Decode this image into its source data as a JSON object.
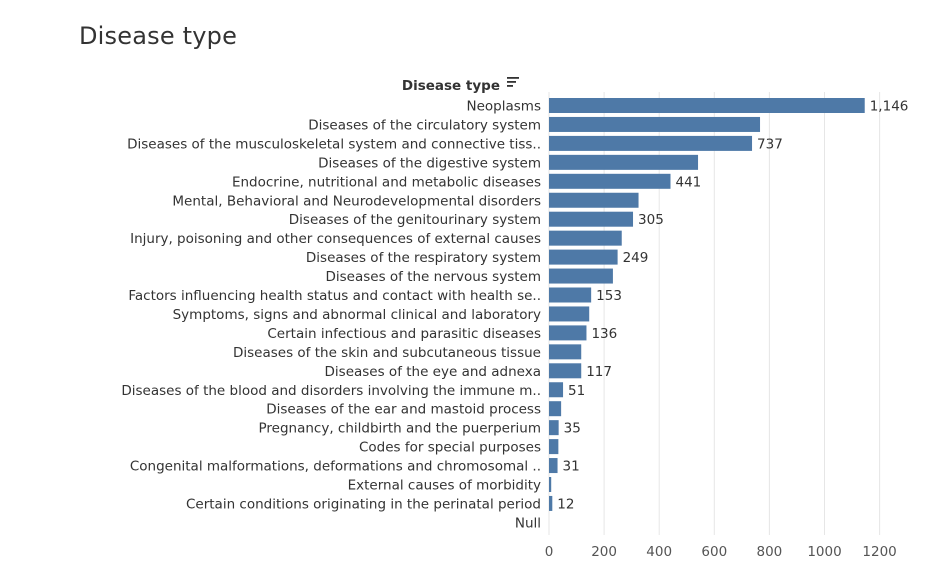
{
  "chart_data": {
    "type": "bar",
    "orientation": "horizontal",
    "title": "Disease type",
    "category_axis_title": "Disease type",
    "categories": [
      "Neoplasms",
      "Diseases of the circulatory system",
      "Diseases of the musculoskeletal system and connective tiss..",
      "Diseases of the digestive system",
      "Endocrine, nutritional and metabolic diseases",
      "Mental, Behavioral and Neurodevelopmental disorders",
      "Diseases of the genitourinary system",
      "Injury, poisoning and other consequences of external causes",
      "Diseases of the respiratory system",
      "Diseases of the nervous system",
      "Factors influencing health status and contact with health se..",
      "Symptoms, signs and abnormal clinical and laboratory",
      "Certain infectious and parasitic diseases",
      "Diseases of the skin and subcutaneous tissue",
      "Diseases of the eye and adnexa",
      "Diseases of the blood and disorders involving the immune m..",
      "Diseases of the ear and mastoid process",
      "Pregnancy, childbirth and the puerperium",
      "Codes for special purposes",
      "Congenital malformations, deformations and chromosomal ..",
      "External causes of morbidity",
      "Certain conditions originating in the perinatal period",
      "Null"
    ],
    "values": [
      1146,
      766,
      737,
      541,
      441,
      325,
      305,
      264,
      249,
      232,
      153,
      146,
      136,
      117,
      117,
      51,
      44,
      35,
      34,
      31,
      8,
      12,
      0
    ],
    "value_labels": [
      "1,146",
      "",
      "737",
      "",
      "441",
      "",
      "305",
      "",
      "249",
      "",
      "153",
      "",
      "136",
      "",
      "117",
      "51",
      "",
      "35",
      "",
      "31",
      "",
      "12",
      ""
    ],
    "xlim": [
      0,
      1300
    ],
    "x_ticks": [
      0,
      200,
      400,
      600,
      800,
      1000,
      1200
    ],
    "x_tick_labels": [
      "0",
      "200",
      "400",
      "600",
      "800",
      "1000",
      "1200"
    ],
    "grid": true,
    "sort_icon": "sort-descending-icon",
    "colors": {
      "bar": "#4e79a7",
      "grid": "#e6e6e6",
      "text": "#333333"
    }
  }
}
